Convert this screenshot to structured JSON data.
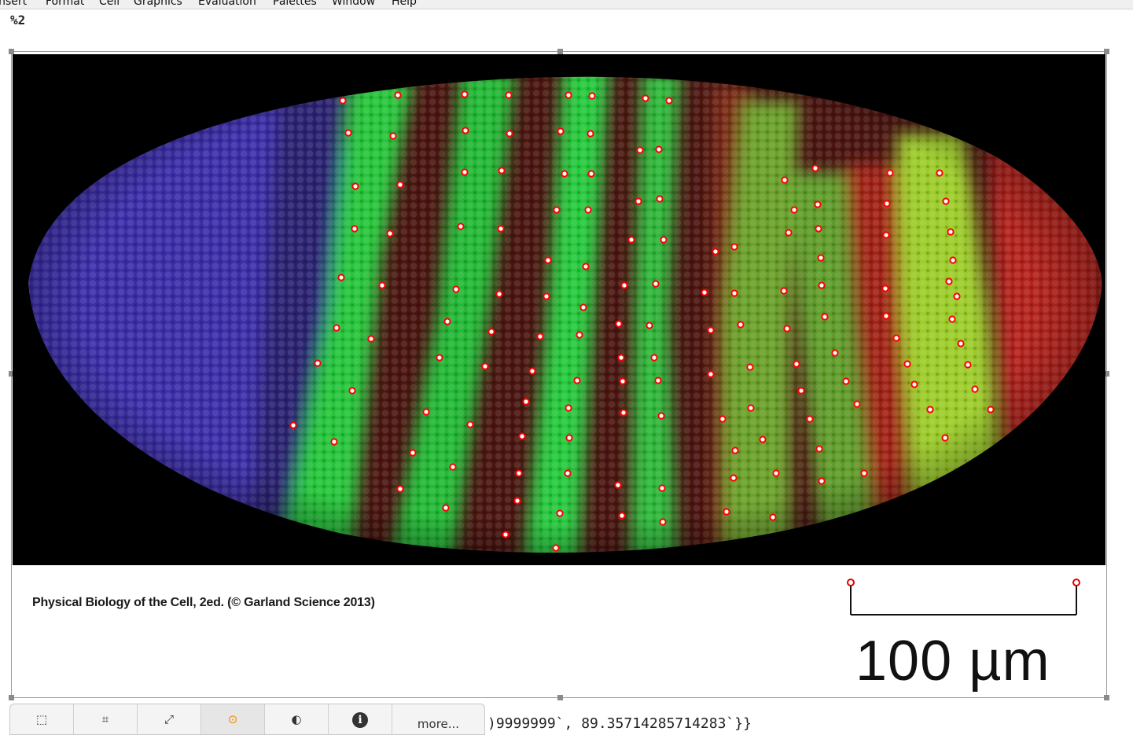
{
  "menubar": {
    "items": [
      "Insert",
      "Format",
      "Cell",
      "Graphics",
      "Evaluation",
      "Palettes",
      "Window",
      "Help"
    ]
  },
  "cell": {
    "label": "%2"
  },
  "graphic": {
    "caption": "Physical Biology of the Cell, 2ed. (© Garland Science 2013)",
    "scale_bar_label": "100 µm",
    "marker_color": "#ff0000",
    "stripe_colors": {
      "anterior": "#3a2fa8",
      "green": "#2ecc40",
      "red": "#b3241a",
      "yellow_green": "#9ccc2a"
    }
  },
  "toolbar": {
    "buttons": [
      {
        "icon": "selection-icon",
        "label": "⬚"
      },
      {
        "icon": "crop-icon",
        "label": "⌗"
      },
      {
        "icon": "resize-icon",
        "label": "⤢"
      },
      {
        "icon": "coordinate-tool-icon",
        "label": "⊙"
      },
      {
        "icon": "mask-icon",
        "label": "◐"
      },
      {
        "icon": "info-icon",
        "label": "i"
      }
    ],
    "more_label": "more..."
  },
  "output": {
    "text": ")9999999`, 89.35714285714283`}}"
  }
}
